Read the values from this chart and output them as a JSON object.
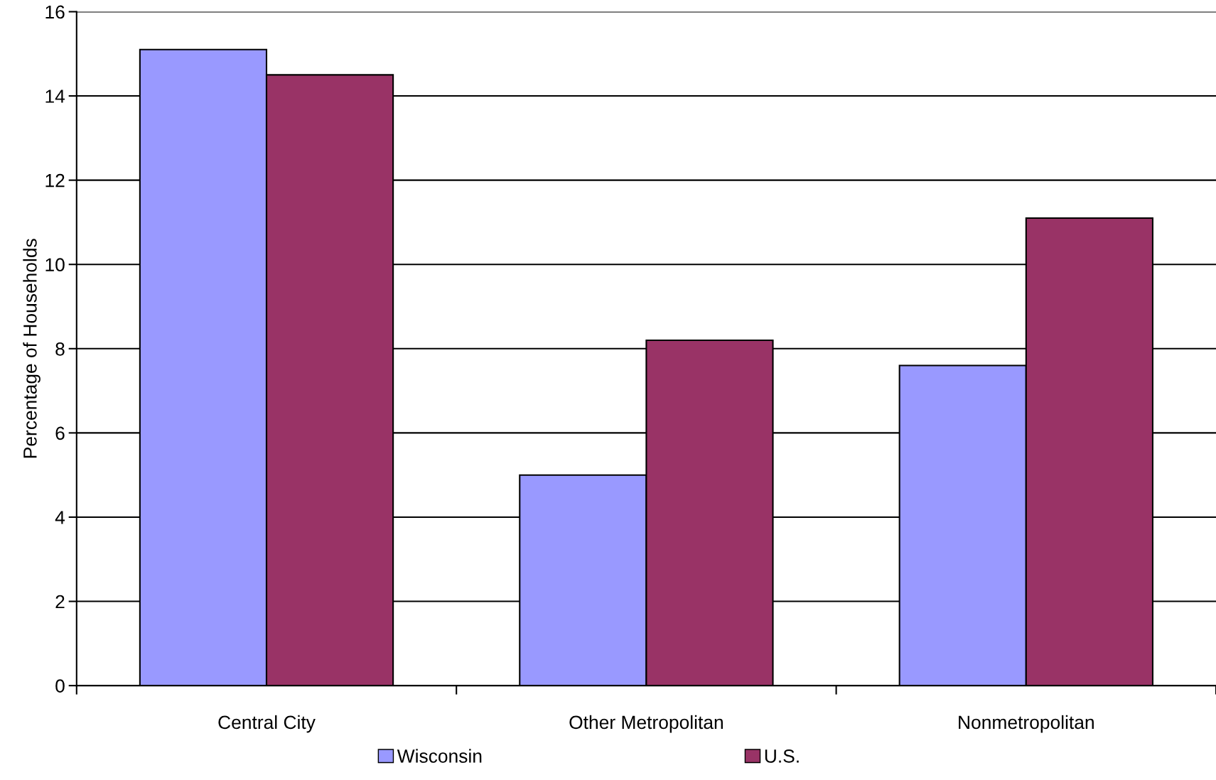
{
  "chart_data": {
    "type": "bar",
    "ylabel": "Percentage of Households",
    "categories": [
      "Central City",
      "Other Metropolitan",
      "Nonmetropolitan"
    ],
    "series": [
      {
        "name": "Wisconsin",
        "color": "#9999ff",
        "values": [
          15.1,
          5.0,
          7.6
        ]
      },
      {
        "name": "U.S.",
        "color": "#993366",
        "values": [
          14.5,
          8.2,
          11.1
        ]
      }
    ],
    "ylim": [
      0,
      16
    ],
    "yticks": [
      0,
      2,
      4,
      6,
      8,
      10,
      12,
      14,
      16
    ],
    "grid": "y",
    "legend": "bottom"
  }
}
